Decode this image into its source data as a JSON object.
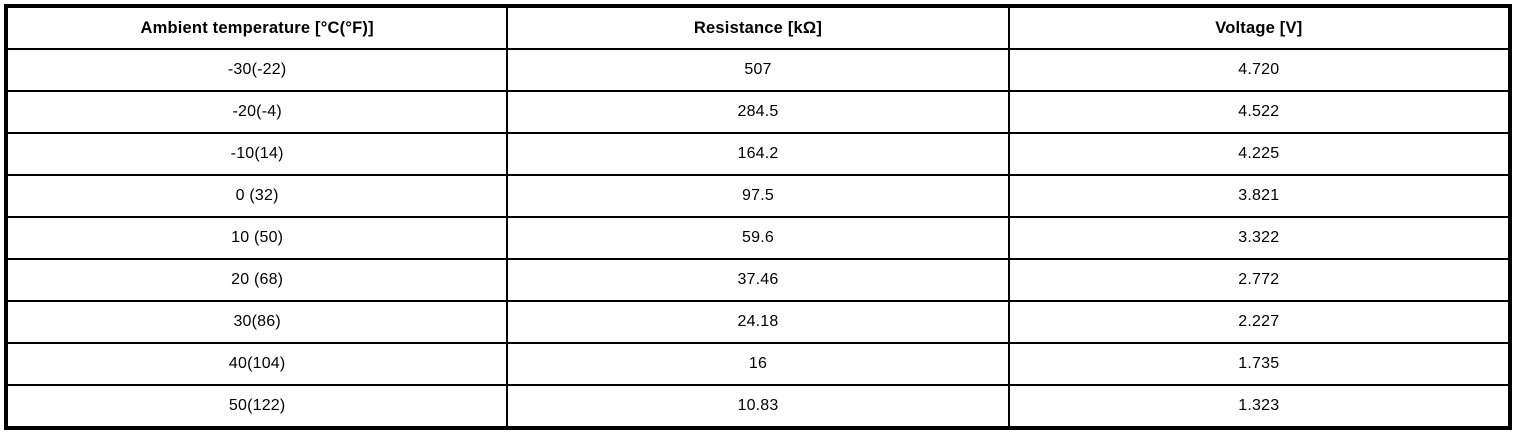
{
  "table": {
    "columns": [
      {
        "label": "Ambient temperature [°C(°F)]"
      },
      {
        "label": "Resistance [kΩ]"
      },
      {
        "label": "Voltage [V]"
      }
    ],
    "rows": [
      [
        "-30(-22)",
        "507",
        "4.720"
      ],
      [
        "-20(-4)",
        "284.5",
        "4.522"
      ],
      [
        "-10(14)",
        "164.2",
        "4.225"
      ],
      [
        "0 (32)",
        "97.5",
        "3.821"
      ],
      [
        "10 (50)",
        "59.6",
        "3.322"
      ],
      [
        "20 (68)",
        "37.46",
        "2.772"
      ],
      [
        "30(86)",
        "24.18",
        "2.227"
      ],
      [
        "40(104)",
        "16",
        "1.735"
      ],
      [
        "50(122)",
        "10.83",
        "1.323"
      ]
    ]
  }
}
